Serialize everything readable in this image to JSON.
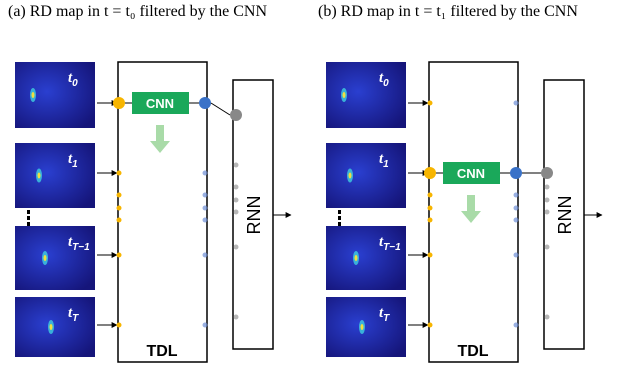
{
  "panels": [
    {
      "caption": "(a) RD map in t = t₀ filtered by the CNN",
      "images": [
        {
          "base": "t",
          "sub": "0"
        },
        {
          "base": "t",
          "sub": "1"
        },
        {
          "base": "t",
          "sub": "T−1"
        },
        {
          "base": "t",
          "sub": "T"
        }
      ],
      "cnn": "CNN",
      "tdl": "TDL",
      "rnn": "RNN"
    },
    {
      "caption": "(b) RD map in t = t₁ filtered by the CNN",
      "images": [
        {
          "base": "t",
          "sub": "0"
        },
        {
          "base": "t",
          "sub": "1"
        },
        {
          "base": "t",
          "sub": "T−1"
        },
        {
          "base": "t",
          "sub": "T"
        }
      ],
      "cnn": "CNN",
      "tdl": "TDL",
      "rnn": "RNN"
    }
  ]
}
